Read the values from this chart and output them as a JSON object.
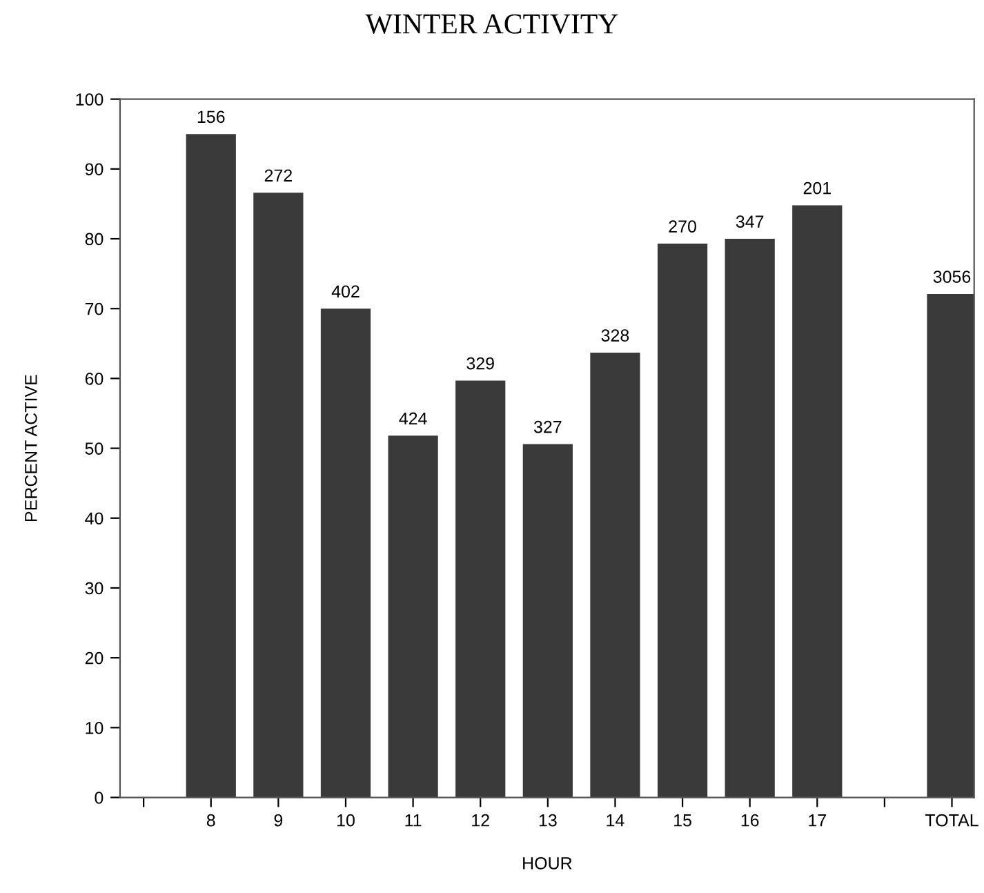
{
  "chart_data": {
    "type": "bar",
    "title": "WINTER ACTIVITY",
    "xlabel": "HOUR",
    "ylabel": "PERCENT ACTIVE",
    "categories": [
      null,
      "8",
      "9",
      "10",
      "11",
      "12",
      "13",
      "14",
      "15",
      "16",
      "17",
      null,
      "TOTAL"
    ],
    "values": [
      null,
      95,
      86.6,
      70,
      51.8,
      59.7,
      50.6,
      63.7,
      79.3,
      80,
      84.8,
      null,
      72.1
    ],
    "annotations": [
      {
        "text": "156",
        "x": "8",
        "y": 95
      },
      {
        "text": "272",
        "x": "9",
        "y": 86.6
      },
      {
        "text": "402",
        "x": "10",
        "y": 70
      },
      {
        "text": "424",
        "x": "11",
        "y": 51.8
      },
      {
        "text": "329",
        "x": "12",
        "y": 59.7
      },
      {
        "text": "327",
        "x": "13",
        "y": 50.6
      },
      {
        "text": "328",
        "x": "14",
        "y": 63.7
      },
      {
        "text": "270",
        "x": "15",
        "y": 79.3
      },
      {
        "text": "347",
        "x": "16",
        "y": 80
      },
      {
        "text": "201",
        "x": "17",
        "y": 84.8
      },
      {
        "text": "3056",
        "x": "TOTAL",
        "y": 72.1
      }
    ],
    "color": "#3a3a3a",
    "ylim": [
      0,
      100
    ],
    "yticks": [
      0,
      10,
      20,
      30,
      40,
      50,
      60,
      70,
      80,
      90,
      100
    ],
    "grid": false
  }
}
